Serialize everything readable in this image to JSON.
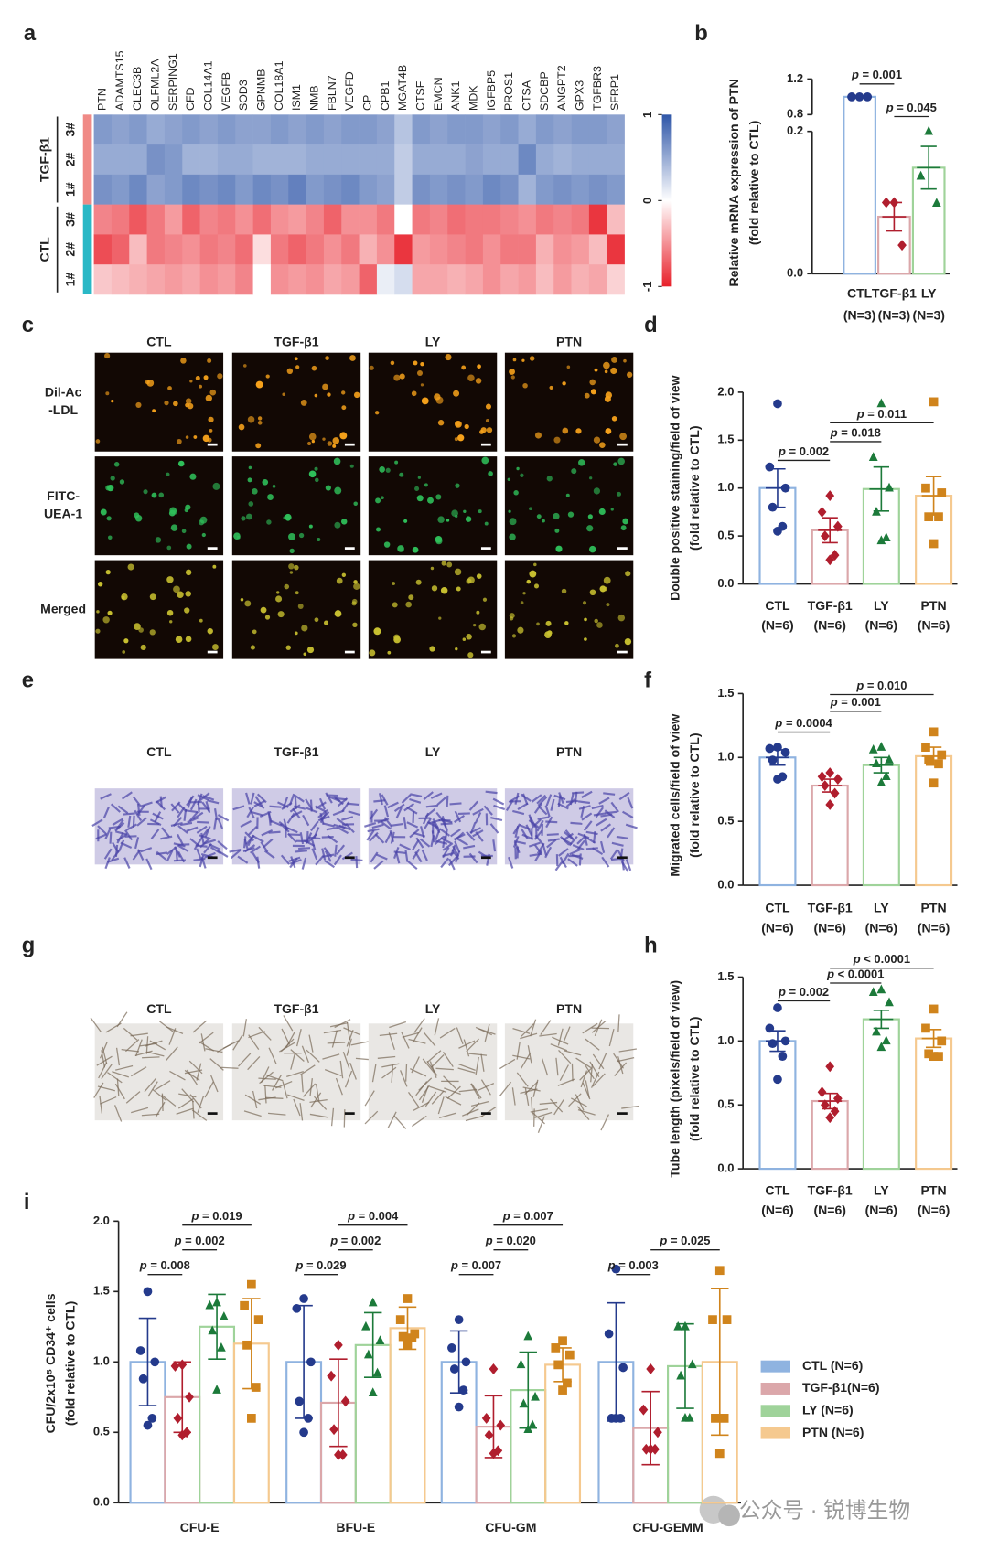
{
  "panel_labels": [
    "a",
    "b",
    "c",
    "d",
    "e",
    "f",
    "g",
    "h",
    "i"
  ],
  "watermark": "公众号 · 锐博生物",
  "image_panels": [
    {
      "columns": [
        "CTL",
        "TGF-β1",
        "LY",
        "PTN"
      ],
      "rows": [
        [
          "Dil-Ac",
          "-LDL"
        ],
        [
          "FITC-",
          "UEA-1"
        ],
        [
          "Merged"
        ]
      ]
    },
    {
      "columns": [
        "CTL",
        "TGF-β1",
        "LY",
        "PTN"
      ]
    },
    {
      "columns": [
        "CTL",
        "TGF-β1",
        "LY",
        "PTN"
      ]
    }
  ],
  "chart_data": [
    {
      "type": "heatmap",
      "x": [
        "PTN",
        "ADAMTS15",
        "CLEC3B",
        "OLFML2A",
        "SERPING1",
        "CFD",
        "COL14A1",
        "VEGFB",
        "SOD3",
        "GPNMB",
        "COL18A1",
        "ISM1",
        "NMB",
        "FBLN7",
        "VEGFD",
        "CP",
        "CPB1",
        "MGAT4B",
        "CTSF",
        "EMCN",
        "ANK1",
        "MDK",
        "IGFBP5",
        "PROS1",
        "CTSA",
        "SDCBP",
        "ANGPT2",
        "GPX3",
        "TGFBR3",
        "SFRP1"
      ],
      "row_groups": [
        {
          "name": "TGF-β1",
          "color": "#f08a86",
          "rows": [
            "3#",
            "2#",
            "1#"
          ]
        },
        {
          "name": "CTL",
          "color": "#2ab8c6",
          "rows": [
            "3#",
            "2#",
            "1#"
          ]
        }
      ],
      "values": [
        [
          0.6,
          0.55,
          0.6,
          0.5,
          0.55,
          0.6,
          0.55,
          0.6,
          0.55,
          0.55,
          0.6,
          0.55,
          0.6,
          0.55,
          0.6,
          0.6,
          0.55,
          0.35,
          0.6,
          0.55,
          0.6,
          0.6,
          0.55,
          0.6,
          0.5,
          0.6,
          0.55,
          0.6,
          0.6,
          0.55
        ],
        [
          0.5,
          0.5,
          0.5,
          0.65,
          0.6,
          0.45,
          0.45,
          0.5,
          0.5,
          0.45,
          0.45,
          0.45,
          0.5,
          0.5,
          0.5,
          0.5,
          0.5,
          0.3,
          0.5,
          0.5,
          0.5,
          0.55,
          0.5,
          0.5,
          0.7,
          0.5,
          0.45,
          0.5,
          0.5,
          0.5
        ],
        [
          0.65,
          0.6,
          0.7,
          0.55,
          0.6,
          0.7,
          0.65,
          0.7,
          0.6,
          0.7,
          0.65,
          0.75,
          0.6,
          0.65,
          0.7,
          0.6,
          0.55,
          0.3,
          0.65,
          0.6,
          0.65,
          0.6,
          0.7,
          0.65,
          0.45,
          0.6,
          0.65,
          0.6,
          0.65,
          0.6
        ],
        [
          -0.55,
          -0.6,
          -0.75,
          -0.6,
          -0.45,
          -0.7,
          -0.55,
          -0.6,
          -0.5,
          -0.65,
          -0.5,
          -0.45,
          -0.55,
          -0.7,
          -0.5,
          -0.5,
          -0.6,
          0,
          -0.6,
          -0.55,
          -0.65,
          -0.6,
          -0.6,
          -0.55,
          -0.5,
          -0.6,
          -0.55,
          -0.6,
          -0.9,
          -0.3
        ],
        [
          -0.8,
          -0.7,
          -0.3,
          -0.6,
          -0.55,
          -0.5,
          -0.6,
          -0.55,
          -0.65,
          -0.15,
          -0.6,
          -0.7,
          -0.6,
          -0.5,
          -0.6,
          -0.35,
          -0.5,
          -0.9,
          -0.45,
          -0.5,
          -0.55,
          -0.6,
          -0.5,
          -0.6,
          -0.6,
          -0.35,
          -0.5,
          -0.45,
          -0.3,
          -0.9
        ],
        [
          -0.25,
          -0.3,
          -0.35,
          -0.4,
          -0.45,
          -0.4,
          -0.5,
          -0.45,
          -0.55,
          0,
          -0.5,
          -0.45,
          -0.5,
          -0.4,
          -0.45,
          -0.7,
          0.1,
          0.2,
          -0.4,
          -0.4,
          -0.35,
          -0.4,
          -0.5,
          -0.4,
          -0.45,
          -0.3,
          -0.45,
          -0.35,
          -0.4,
          -0.2
        ]
      ],
      "zlim": [
        -1,
        1
      ],
      "zticks": [
        1,
        0,
        -1
      ],
      "high_color": "#2f56a8",
      "low_color": "#e8202a"
    },
    {
      "type": "bar",
      "categories": [
        "CTL",
        "TGF-β1",
        "LY"
      ],
      "category_notes": [
        "(N=3)",
        "(N=3)",
        "(N=3)"
      ],
      "y_label": [
        "Relative mRNA expression of PTN",
        "(fold relative to CTL)"
      ],
      "values": [
        1.0,
        0.08,
        0.149
      ],
      "errors": [
        0.01,
        0.02,
        0.03
      ],
      "points": [
        [
          1.0,
          1.0,
          1.0
        ],
        [
          0.1,
          0.1,
          0.04
        ],
        [
          0.2,
          0.137,
          0.099
        ]
      ],
      "colors": [
        "#243a8c",
        "#b01e2e",
        "#1c7a3a"
      ],
      "bar_colors": [
        "#8fb3e0",
        "#dba7aa",
        "#9fd39a"
      ],
      "markers": [
        "circle",
        "diamond",
        "triangle"
      ],
      "ylim": [
        0,
        1.2
      ],
      "axis_break": [
        0.2,
        0.8
      ],
      "yticks": [
        {
          "value": 0,
          "label": "0.0"
        },
        0.2,
        0.8,
        1.2
      ],
      "comparisons": [
        {
          "pair": [
            0,
            1
          ],
          "label": "p = 0.001"
        },
        {
          "pair": [
            1,
            2
          ],
          "label": "p = 0.045"
        }
      ]
    },
    {
      "type": "bar",
      "categories": [
        "CTL",
        "TGF-β1",
        "LY",
        "PTN"
      ],
      "category_notes": [
        "(N=6)",
        "(N=6)",
        "(N=6)",
        "(N=6)"
      ],
      "y_label": [
        "Double positive staining/field of view",
        "(fold relative to CTL)"
      ],
      "values": [
        1.0,
        0.56,
        0.99,
        0.92
      ],
      "errors": [
        0.2,
        0.13,
        0.23,
        0.2
      ],
      "points": [
        [
          1.88,
          1.22,
          1.0,
          0.8,
          0.6,
          0.55
        ],
        [
          0.92,
          0.75,
          0.6,
          0.5,
          0.3,
          0.25
        ],
        [
          1.88,
          1.32,
          1.0,
          0.75,
          0.48,
          0.45
        ],
        [
          1.9,
          1.0,
          0.95,
          0.7,
          0.7,
          0.42
        ]
      ],
      "colors": [
        "#243a8c",
        "#b01e2e",
        "#1c7a3a",
        "#d0841c"
      ],
      "bar_colors": [
        "#8fb3e0",
        "#dba7aa",
        "#9fd39a",
        "#f5c98f"
      ],
      "markers": [
        "circle",
        "diamond",
        "triangle",
        "square"
      ],
      "ylim": [
        0,
        2
      ],
      "yticks": [
        {
          "value": 0,
          "label": "0.0"
        },
        0.5,
        {
          "value": 1,
          "label": "1.0"
        },
        1.5,
        {
          "value": 2,
          "label": "2.0"
        }
      ],
      "comparisons": [
        {
          "pair": [
            0,
            1
          ],
          "label": "p = 0.002"
        },
        {
          "pair": [
            1,
            2
          ],
          "label": "p = 0.018"
        },
        {
          "pair": [
            1,
            3
          ],
          "label": "p = 0.011"
        }
      ]
    },
    {
      "type": "bar",
      "categories": [
        "CTL",
        "TGF-β1",
        "LY",
        "PTN"
      ],
      "category_notes": [
        "(N=6)",
        "(N=6)",
        "(N=6)",
        "(N=6)"
      ],
      "y_label": [
        "Migrated cells/field of view",
        "(fold relative to CTL)"
      ],
      "values": [
        1.0,
        0.78,
        0.94,
        1.01
      ],
      "errors": [
        0.06,
        0.05,
        0.06,
        0.07
      ],
      "points": [
        [
          1.08,
          1.07,
          1.04,
          0.98,
          0.85,
          0.83
        ],
        [
          0.88,
          0.85,
          0.83,
          0.78,
          0.72,
          0.63
        ],
        [
          1.08,
          1.06,
          0.98,
          0.95,
          0.85,
          0.8
        ],
        [
          1.2,
          1.08,
          1.02,
          0.98,
          0.95,
          0.8
        ]
      ],
      "colors": [
        "#243a8c",
        "#b01e2e",
        "#1c7a3a",
        "#d0841c"
      ],
      "bar_colors": [
        "#8fb3e0",
        "#dba7aa",
        "#9fd39a",
        "#f5c98f"
      ],
      "markers": [
        "circle",
        "diamond",
        "triangle",
        "square"
      ],
      "ylim": [
        0,
        1.5
      ],
      "yticks": [
        {
          "value": 0,
          "label": "0.0"
        },
        0.5,
        {
          "value": 1,
          "label": "1.0"
        },
        1.5
      ],
      "comparisons": [
        {
          "pair": [
            0,
            1
          ],
          "label": "p = 0.0004"
        },
        {
          "pair": [
            1,
            2
          ],
          "label": "p = 0.001"
        },
        {
          "pair": [
            1,
            3
          ],
          "label": "p = 0.010"
        }
      ]
    },
    {
      "type": "bar",
      "categories": [
        "CTL",
        "TGF-β1",
        "LY",
        "PTN"
      ],
      "category_notes": [
        "(N=6)",
        "(N=6)",
        "(N=6)",
        "(N=6)"
      ],
      "y_label": [
        "Tube length (pixels/field of view)",
        "(fold relative to CTL)"
      ],
      "values": [
        1.0,
        0.53,
        1.17,
        1.02
      ],
      "errors": [
        0.08,
        0.06,
        0.07,
        0.07
      ],
      "points": [
        [
          1.26,
          1.1,
          1.0,
          0.98,
          0.88,
          0.7
        ],
        [
          0.8,
          0.6,
          0.55,
          0.5,
          0.45,
          0.4
        ],
        [
          1.4,
          1.38,
          1.3,
          1.07,
          1.0,
          0.95
        ],
        [
          1.25,
          1.1,
          1.0,
          0.9,
          0.88,
          0.88
        ]
      ],
      "colors": [
        "#243a8c",
        "#b01e2e",
        "#1c7a3a",
        "#d0841c"
      ],
      "bar_colors": [
        "#8fb3e0",
        "#dba7aa",
        "#9fd39a",
        "#f5c98f"
      ],
      "markers": [
        "circle",
        "diamond",
        "triangle",
        "square"
      ],
      "ylim": [
        0,
        1.5
      ],
      "yticks": [
        {
          "value": 0,
          "label": "0.0"
        },
        0.5,
        {
          "value": 1,
          "label": "1.0"
        },
        1.5
      ],
      "comparisons": [
        {
          "pair": [
            0,
            1
          ],
          "label": "p = 0.002"
        },
        {
          "pair": [
            1,
            2
          ],
          "label": "p < 0.0001"
        },
        {
          "pair": [
            1,
            3
          ],
          "label": "p < 0.0001"
        }
      ]
    },
    {
      "type": "grouped_bar",
      "categories": [
        "CFU-E",
        "BFU-E",
        "CFU-GM",
        "CFU-GEMM"
      ],
      "y_label": [
        "CFU/2x10⁵ CD34⁺ cells",
        "(fold relative to CTL)"
      ],
      "ylim": [
        0,
        2
      ],
      "yticks": [
        {
          "value": 0,
          "label": "0.0"
        },
        0.5,
        {
          "value": 1,
          "label": "1.0"
        },
        1.5,
        {
          "value": 2,
          "label": "2.0"
        }
      ],
      "series": [
        {
          "name": "CTL (N=6)",
          "color": "#243a8c",
          "bar_color": "#8fb3e0",
          "marker": "circle",
          "values": [
            1.0,
            1.0,
            1.0,
            1.0
          ],
          "errors": [
            0.31,
            0.4,
            0.22,
            0.42
          ],
          "points": [
            [
              1.5,
              1.08,
              1.0,
              0.88,
              0.6,
              0.55
            ],
            [
              1.45,
              1.38,
              1.0,
              0.72,
              0.6,
              0.5
            ],
            [
              1.3,
              1.1,
              1.0,
              0.95,
              0.8,
              0.68
            ],
            [
              1.66,
              1.2,
              0.96,
              0.6,
              0.6,
              0.6
            ]
          ]
        },
        {
          "name": "TGF-β1(N=6)",
          "color": "#b01e2e",
          "bar_color": "#dba7aa",
          "marker": "diamond",
          "values": [
            0.75,
            0.71,
            0.54,
            0.53
          ],
          "errors": [
            0.25,
            0.31,
            0.22,
            0.26
          ],
          "points": [
            [
              0.98,
              0.97,
              0.75,
              0.6,
              0.5,
              0.48
            ],
            [
              1.12,
              0.9,
              0.72,
              0.52,
              0.34,
              0.34
            ],
            [
              0.95,
              0.6,
              0.55,
              0.48,
              0.37,
              0.35
            ],
            [
              0.95,
              0.66,
              0.5,
              0.38,
              0.38,
              0.38
            ]
          ]
        },
        {
          "name": "LY (N=6)",
          "color": "#1c7a3a",
          "bar_color": "#9fd39a",
          "marker": "triangle",
          "values": [
            1.25,
            1.12,
            0.8,
            0.97
          ],
          "errors": [
            0.23,
            0.23,
            0.27,
            0.3
          ],
          "points": [
            [
              1.42,
              1.4,
              1.32,
              1.22,
              1.1,
              0.8
            ],
            [
              1.42,
              1.25,
              1.15,
              1.05,
              0.92,
              0.78
            ],
            [
              1.18,
              0.98,
              0.75,
              0.7,
              0.55,
              0.52
            ],
            [
              1.25,
              1.25,
              0.98,
              0.9,
              0.6,
              0.6
            ]
          ]
        },
        {
          "name": "PTN (N=6)",
          "color": "#d0841c",
          "bar_color": "#f5c98f",
          "marker": "square",
          "values": [
            1.13,
            1.24,
            0.98,
            1.0
          ],
          "errors": [
            0.32,
            0.15,
            0.12,
            0.52
          ],
          "points": [
            [
              1.55,
              1.4,
              1.3,
              1.12,
              0.82,
              0.6
            ],
            [
              1.45,
              1.3,
              1.2,
              1.18,
              1.17,
              1.12
            ],
            [
              1.15,
              1.1,
              1.05,
              0.98,
              0.85,
              0.8
            ],
            [
              1.65,
              1.3,
              1.3,
              0.6,
              0.6,
              0.35
            ]
          ]
        }
      ],
      "comparisons": [
        [
          {
            "pair": [
              0,
              1
            ],
            "label": "p = 0.008"
          },
          {
            "pair": [
              1,
              2
            ],
            "label": "p = 0.002"
          },
          {
            "pair": [
              1,
              3
            ],
            "label": "p = 0.019"
          }
        ],
        [
          {
            "pair": [
              0,
              1
            ],
            "label": "p = 0.029"
          },
          {
            "pair": [
              1,
              2
            ],
            "label": "p = 0.002"
          },
          {
            "pair": [
              1,
              3
            ],
            "label": "p = 0.004"
          }
        ],
        [
          {
            "pair": [
              0,
              1
            ],
            "label": "p = 0.007"
          },
          {
            "pair": [
              1,
              2
            ],
            "label": "p = 0.020"
          },
          {
            "pair": [
              1,
              3
            ],
            "label": "p = 0.007"
          }
        ],
        [
          {
            "pair": [
              0,
              1
            ],
            "label": "p = 0.003"
          },
          {
            "pair": [
              1,
              3
            ],
            "label": "p = 0.025"
          }
        ]
      ]
    }
  ]
}
